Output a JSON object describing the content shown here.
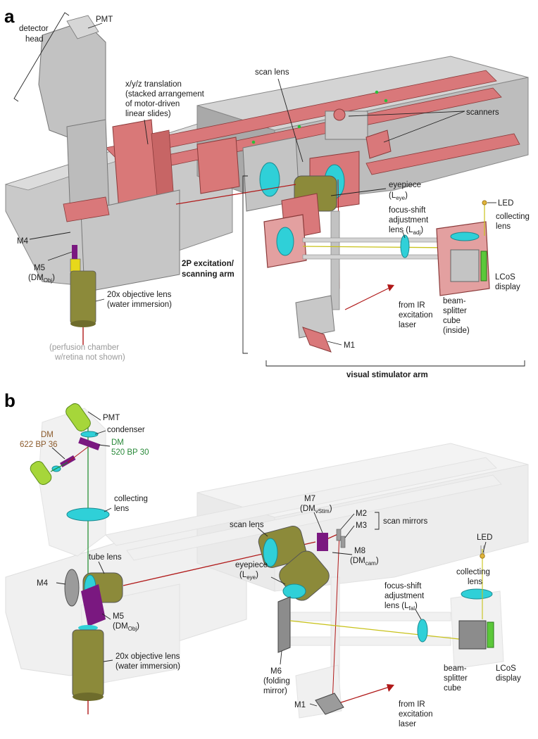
{
  "panel_a": {
    "letter": "a",
    "labels": {
      "pmt": "PMT",
      "detector_head_1": "detector",
      "detector_head_2": "head",
      "xyz_1": "x/y/z translation",
      "xyz_2": "(stacked arrangement",
      "xyz_3": "of motor-driven",
      "xyz_4": "linear slides)",
      "scan_lens": "scan lens",
      "scanners": "scanners",
      "eyepiece_1": "eyepiece",
      "eyepiece_2": "(L",
      "eyepiece_sub": "eye",
      "eyepiece_3": ")",
      "led": "LED",
      "collecting_1": "collecting",
      "collecting_2": "lens",
      "focus_1": "focus-shift",
      "focus_2": "adjustment",
      "focus_3": "lens (L",
      "focus_sub": "adj",
      "focus_4": ")",
      "m4": "M4",
      "m5_1": "M5",
      "m5_2": "(DM",
      "m5_sub": "Obj",
      "m5_3": ")",
      "objective_1": "20x objective lens",
      "objective_2": "(water immersion)",
      "perfusion_1": "(perfusion chamber",
      "perfusion_2": "w/retina not shown)",
      "excitation_1": "2P excitation/",
      "excitation_2": "scanning arm",
      "lcos_1": "LCoS",
      "lcos_2": "display",
      "beam_1": "beam-",
      "beam_2": "splitter",
      "beam_3": "cube",
      "beam_4": "(inside)",
      "from_ir_1": "from IR",
      "from_ir_2": "excitation",
      "from_ir_3": "laser",
      "m1": "M1",
      "visual_arm": "visual stimulator arm"
    }
  },
  "panel_b": {
    "letter": "b",
    "labels": {
      "pmt": "PMT",
      "condenser": "condenser",
      "dm_green_1": "DM",
      "dm_green_2": "520 BP 30",
      "dm_brown_1": "DM",
      "dm_brown_2": "622 BP 36",
      "collecting_1": "collecting",
      "collecting_2": "lens",
      "tube_lens": "tube lens",
      "m4": "M4",
      "m5_1": "M5",
      "m5_2": "(DM",
      "m5_sub": "Obj",
      "m5_3": ")",
      "objective_1": "20x objective lens",
      "objective_2": "(water immersion)",
      "m7_1": "M7",
      "m7_2": "(DM",
      "m7_sub": "vStim",
      "m7_3": ")",
      "m2": "M2",
      "m3": "M3",
      "scan_mirrors": "scan mirrors",
      "scan_lens": "scan lens",
      "m8_1": "M8",
      "m8_2": "(DM",
      "m8_sub": "cam",
      "m8_3": ")",
      "eyepiece_1": "eyepiece",
      "eyepiece_2": "(L",
      "eyepiece_sub": "eye",
      "eyepiece_3": ")",
      "led": "LED",
      "collecting_r_1": "collecting",
      "collecting_r_2": "lens",
      "focus_1": "focus-shift",
      "focus_2": "adjustment",
      "focus_3": "lens (L",
      "focus_sub": "fal",
      "focus_4": ")",
      "m6_1": "M6",
      "m6_2": "(folding",
      "m6_3": "mirror)",
      "beam_1": "beam-",
      "beam_2": "splitter",
      "beam_3": "cube",
      "lcos_1": "LCoS",
      "lcos_2": "display",
      "from_ir_1": "from IR",
      "from_ir_2": "excitation",
      "from_ir_3": "laser",
      "m1": "M1"
    }
  },
  "colors": {
    "frame_gray": "#b9b9b9",
    "frame_light": "#dedede",
    "rail_red": "#d9787a",
    "lens_cyan": "#2fd0d8",
    "tube_olive": "#8c8a3a",
    "mirror_purple": "#7a1880",
    "laser_red": "#b01818",
    "visual_yellow": "#c8c21a",
    "detection_green": "#1a8a2a",
    "pmt_green": "#a6d63a",
    "dm_brown": "#8b5a2b",
    "dm_green": "#2a8a3a"
  }
}
